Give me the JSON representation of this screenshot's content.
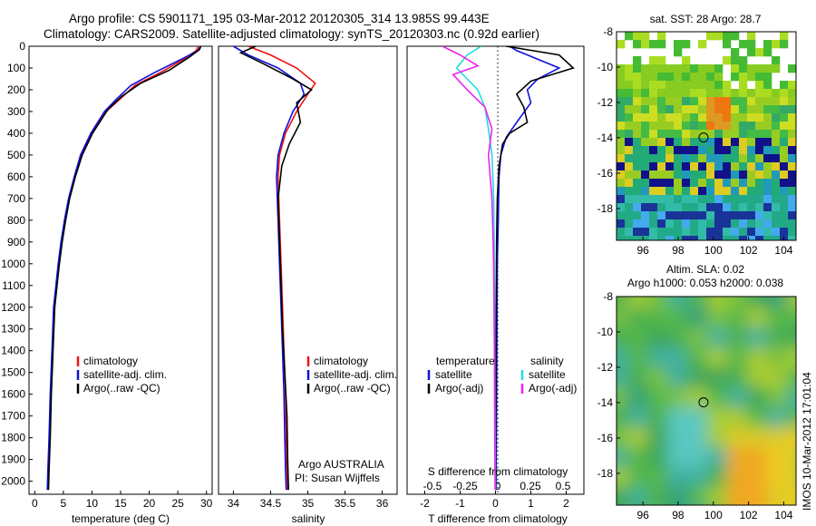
{
  "header": {
    "line1": "Argo profile: CS 5901171_195 03-Mar-2012 20120305_314 13.985S 99.443E",
    "line2": "Climatology: CARS2009. Satellite-adjusted climatology: synTS_20120303.nc (0.92d earlier)"
  },
  "side_stamp": "IMOS 10-Mar-2012 17:01:04",
  "colors": {
    "climatology": "#ee1111",
    "satellite_adj": "#1111dd",
    "argo": "#000000",
    "salinity_sat": "#22dddd",
    "salinity_argo": "#ee22ee"
  },
  "chart_data": [
    {
      "type": "line",
      "panel": "temperature",
      "xlabel": "temperature (deg C)",
      "xlim": [
        -1,
        31
      ],
      "xticks": [
        0,
        5,
        10,
        15,
        20,
        25,
        30
      ],
      "ylim": [
        0,
        2060
      ],
      "yticks": [
        0,
        100,
        200,
        300,
        400,
        500,
        600,
        700,
        800,
        900,
        1000,
        1100,
        1200,
        1300,
        1400,
        1500,
        1600,
        1700,
        1800,
        1900,
        2000
      ],
      "legend": [
        "climatology",
        "satellite-adj. clim.",
        "Argo(..raw -QC)"
      ],
      "series": [
        {
          "name": "climatology",
          "color": "#ee1111",
          "x": [
            28.6,
            28.2,
            26.0,
            22.0,
            17.5,
            15.0,
            12.5,
            10.0,
            8.2,
            7.0,
            6.0,
            5.3,
            4.7,
            4.2,
            3.8,
            3.4,
            3.1,
            2.8,
            2.6,
            2.4,
            2.3
          ],
          "y": [
            0,
            20,
            60,
            120,
            180,
            240,
            300,
            400,
            500,
            600,
            700,
            800,
            900,
            1000,
            1100,
            1200,
            1400,
            1600,
            1800,
            1950,
            2040
          ]
        },
        {
          "name": "satellite-adj. clim.",
          "color": "#1111dd",
          "x": [
            29.0,
            28.5,
            25.6,
            21.0,
            16.8,
            14.4,
            12.2,
            9.8,
            8.0,
            6.9,
            5.9,
            5.2,
            4.6,
            4.1,
            3.7,
            3.3,
            3.0,
            2.7,
            2.5,
            2.3,
            2.2
          ],
          "y": [
            0,
            20,
            60,
            120,
            180,
            240,
            300,
            400,
            500,
            600,
            700,
            800,
            900,
            1000,
            1100,
            1200,
            1400,
            1600,
            1800,
            1950,
            2040
          ]
        },
        {
          "name": "Argo(..raw -QC)",
          "color": "#000000",
          "x": [
            29.0,
            28.8,
            27.0,
            23.5,
            18.5,
            15.2,
            12.8,
            10.1,
            8.3,
            7.1,
            6.1,
            5.4,
            4.8,
            4.3,
            3.9,
            3.5,
            3.2,
            2.9,
            2.7,
            2.5,
            2.4
          ],
          "y": [
            0,
            15,
            50,
            110,
            170,
            230,
            290,
            400,
            500,
            600,
            700,
            800,
            900,
            1000,
            1100,
            1200,
            1400,
            1600,
            1800,
            1950,
            2040
          ]
        }
      ]
    },
    {
      "type": "line",
      "panel": "salinity",
      "xlabel": "salinity",
      "xlim": [
        33.8,
        36.2
      ],
      "xticks": [
        34,
        34.5,
        35,
        35.5,
        36
      ],
      "ylim": [
        0,
        2060
      ],
      "legend": [
        "climatology",
        "satellite-adj. clim.",
        "Argo(..raw -QC)"
      ],
      "annotation": [
        "Argo AUSTRALIA",
        "PI: Susan Wijffels"
      ],
      "series": [
        {
          "name": "climatology",
          "color": "#ee1111",
          "x": [
            34.2,
            34.5,
            34.85,
            35.1,
            35.0,
            34.85,
            34.7,
            34.62,
            34.6,
            34.62,
            34.64,
            34.66,
            34.68,
            34.7,
            34.71,
            34.72,
            34.73
          ],
          "y": [
            0,
            40,
            100,
            170,
            220,
            300,
            400,
            500,
            600,
            800,
            1000,
            1200,
            1400,
            1600,
            1800,
            1950,
            2040
          ]
        },
        {
          "name": "satellite-adj. clim.",
          "color": "#1111dd",
          "x": [
            34.0,
            34.2,
            34.6,
            34.9,
            34.95,
            34.8,
            34.68,
            34.6,
            34.58,
            34.6,
            34.62,
            34.64,
            34.66,
            34.68,
            34.69,
            34.7,
            34.71
          ],
          "y": [
            0,
            40,
            100,
            170,
            220,
            300,
            400,
            500,
            600,
            800,
            1000,
            1200,
            1400,
            1600,
            1800,
            1950,
            2040
          ]
        },
        {
          "name": "Argo(..raw -QC)",
          "color": "#000000",
          "x": [
            34.3,
            34.1,
            34.4,
            34.8,
            35.05,
            34.85,
            34.9,
            34.75,
            34.65,
            34.6,
            34.62,
            34.64,
            34.66,
            34.69,
            34.72,
            34.73,
            34.74
          ],
          "y": [
            0,
            30,
            80,
            150,
            200,
            260,
            350,
            450,
            550,
            700,
            900,
            1100,
            1300,
            1500,
            1700,
            1900,
            2040
          ]
        }
      ]
    },
    {
      "type": "line",
      "panel": "difference",
      "xlabel": "T difference from climatology",
      "xlabel_top": "S difference from climatology",
      "xlim": [
        -2.5,
        2.5
      ],
      "xticks": [
        -2,
        -1,
        0,
        1,
        2
      ],
      "xticks_top": [
        -0.5,
        -0.25,
        0,
        0.25,
        0.5
      ],
      "ylim": [
        0,
        2060
      ],
      "legend_headers": [
        "temperature",
        "salinity"
      ],
      "legend": [
        "satellite",
        "Argo(-adj)",
        "satellite",
        "Argo(-adj)"
      ],
      "series": [
        {
          "name": "satellite",
          "group": "temperature",
          "color": "#1111dd",
          "x": [
            0.4,
            0.6,
            1.8,
            1.2,
            0.9,
            1.0,
            0.6,
            0.3,
            0.15,
            0.1,
            0.08,
            0.05,
            0.04,
            0.03,
            0.02,
            0.02
          ],
          "y": [
            0,
            20,
            100,
            150,
            200,
            260,
            350,
            420,
            500,
            600,
            800,
            1000,
            1300,
            1600,
            1900,
            2040
          ]
        },
        {
          "name": "Argo(-adj)",
          "group": "temperature",
          "color": "#000000",
          "x": [
            0.3,
            1.8,
            2.2,
            1.0,
            0.6,
            0.8,
            0.9,
            0.4,
            0.2,
            0.1,
            0.05,
            0.03,
            0.02,
            0.01,
            0.0,
            0.0
          ],
          "y": [
            0,
            40,
            100,
            160,
            220,
            280,
            350,
            400,
            450,
            550,
            700,
            900,
            1200,
            1500,
            1800,
            2040
          ]
        },
        {
          "name": "satellite",
          "group": "salinity",
          "color": "#22dddd",
          "x": [
            -0.4,
            -0.8,
            -1.1,
            -0.8,
            -0.5,
            -0.3,
            -0.2,
            -0.1,
            -0.05,
            -0.03,
            -0.02,
            -0.01,
            0.0
          ],
          "y": [
            0,
            40,
            100,
            150,
            200,
            280,
            380,
            500,
            700,
            1000,
            1400,
            1800,
            2040
          ]
        },
        {
          "name": "Argo(-adj)",
          "group": "salinity",
          "color": "#ee22ee",
          "x": [
            -1.5,
            -1.0,
            -0.5,
            -1.2,
            -0.8,
            -0.3,
            -0.1,
            -0.2,
            -0.1,
            -0.05,
            -0.03,
            -0.02,
            -0.01
          ],
          "y": [
            0,
            40,
            90,
            130,
            200,
            280,
            380,
            500,
            700,
            1000,
            1400,
            1800,
            2040
          ]
        }
      ]
    },
    {
      "type": "heatmap",
      "panel": "sst-map",
      "title": "sat. SST: 28 Argo: 28.7",
      "xticks": [
        96,
        98,
        100,
        102,
        104
      ],
      "yticks": [
        -8,
        -10,
        -12,
        -14,
        -16,
        -18
      ],
      "xlim": [
        94.5,
        104.7
      ],
      "ylim": [
        -19.8,
        -8
      ],
      "marker": {
        "lon": 99.443,
        "lat": -13.985
      }
    },
    {
      "type": "heatmap",
      "panel": "sla-map",
      "title": "Altim. SLA: 0.02",
      "subtitle": "Argo h1000: 0.053 h2000: 0.038",
      "xticks": [
        96,
        98,
        100,
        102,
        104
      ],
      "yticks": [
        -8,
        -10,
        -12,
        -14,
        -16,
        -18
      ],
      "xlim": [
        94.5,
        104.7
      ],
      "ylim": [
        -19.8,
        -8
      ],
      "marker": {
        "lon": 99.443,
        "lat": -13.985
      }
    }
  ]
}
